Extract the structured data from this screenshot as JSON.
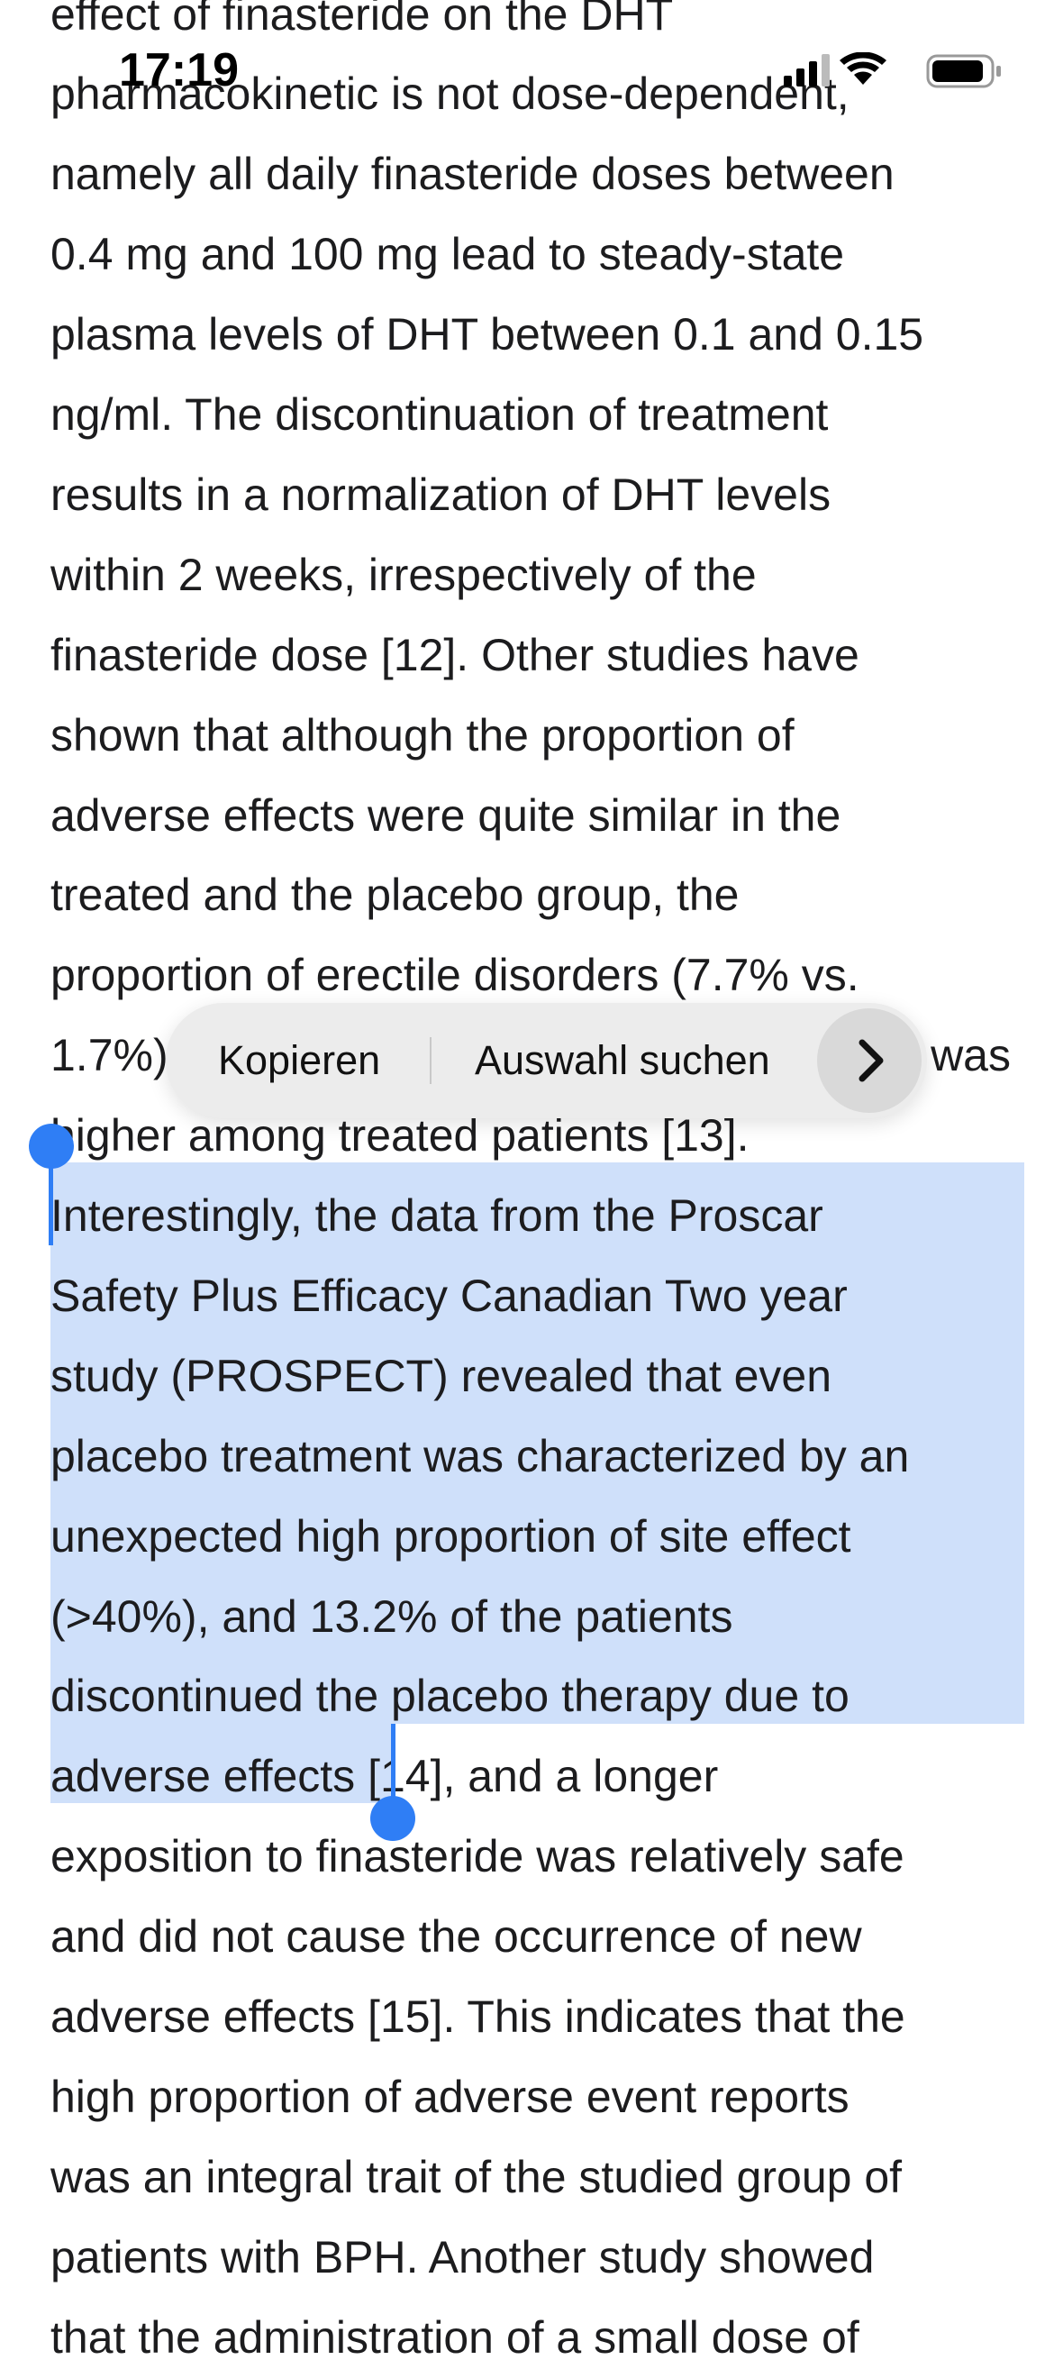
{
  "status_bar": {
    "time": "17:19"
  },
  "article": {
    "lines": [
      "effect of finasteride on the DHT",
      "pharmacokinetic is not dose-dependent,",
      "namely all daily finasteride doses between",
      "0.4 mg and 100 mg lead to steady-state",
      "plasma levels of DHT between 0.1 and 0.15",
      "ng/ml. The discontinuation of treatment",
      "results in a normalization of DHT levels",
      "within 2 weeks, irrespectively of the",
      "finasteride dose [12]. Other studies have",
      "shown that although the proportion of",
      "adverse effects were quite similar in the",
      "treated and the placebo group, the",
      "proportion of erectile disorders (7.7% vs.",
      "1.7%)",
      "higher among treated patients [13].",
      "Interestingly, the data from the Proscar",
      "Safety Plus Efficacy Canadian Two year",
      "study (PROSPECT) revealed that even",
      "placebo treatment was characterized by an",
      "unexpected high proportion of site effect",
      "(>40%), and 13.2% of the patients",
      "discontinued the placebo therapy due to",
      "adverse effects",
      "exposition to finasteride was relatively safe",
      "and did not cause the occurrence of new",
      "adverse effects [15]. This indicates that the",
      "high proportion of adverse event reports",
      "was an integral trait of the studied group of",
      "patients with BPH. Another study showed",
      "that the administration of a small dose of"
    ],
    "line_13_end": "was",
    "line_22_end": " [14], and a longer"
  },
  "selection_menu": {
    "items": [
      "Kopieren",
      "Auswahl suchen"
    ]
  }
}
